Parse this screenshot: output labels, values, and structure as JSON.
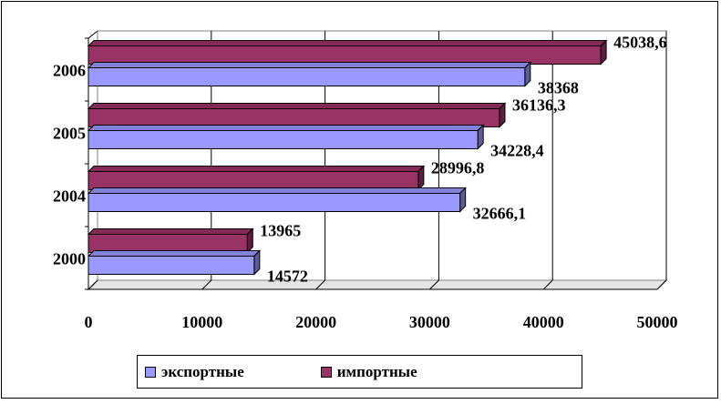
{
  "chart_data": {
    "type": "bar",
    "orientation": "horizontal",
    "categories": [
      "2000",
      "2004",
      "2005",
      "2006"
    ],
    "series": [
      {
        "name": "экспортные",
        "values": [
          14572,
          32666.1,
          34228.4,
          38368
        ],
        "color": "#9999ff",
        "labels": [
          "14572",
          "32666,1",
          "34228,4",
          "38368"
        ]
      },
      {
        "name": "импортные",
        "values": [
          13965,
          28996.8,
          36136.3,
          45038.6
        ],
        "color": "#993366",
        "labels": [
          "13965",
          "28996,8",
          "36136,3",
          "45038,6"
        ]
      }
    ],
    "xlim": [
      0,
      50000
    ],
    "xticks": [
      "0",
      "10000",
      "20000",
      "30000",
      "40000",
      "50000"
    ],
    "xtick_values": [
      0,
      10000,
      20000,
      30000,
      40000,
      50000
    ],
    "grid": true,
    "legend_position": "bottom"
  }
}
